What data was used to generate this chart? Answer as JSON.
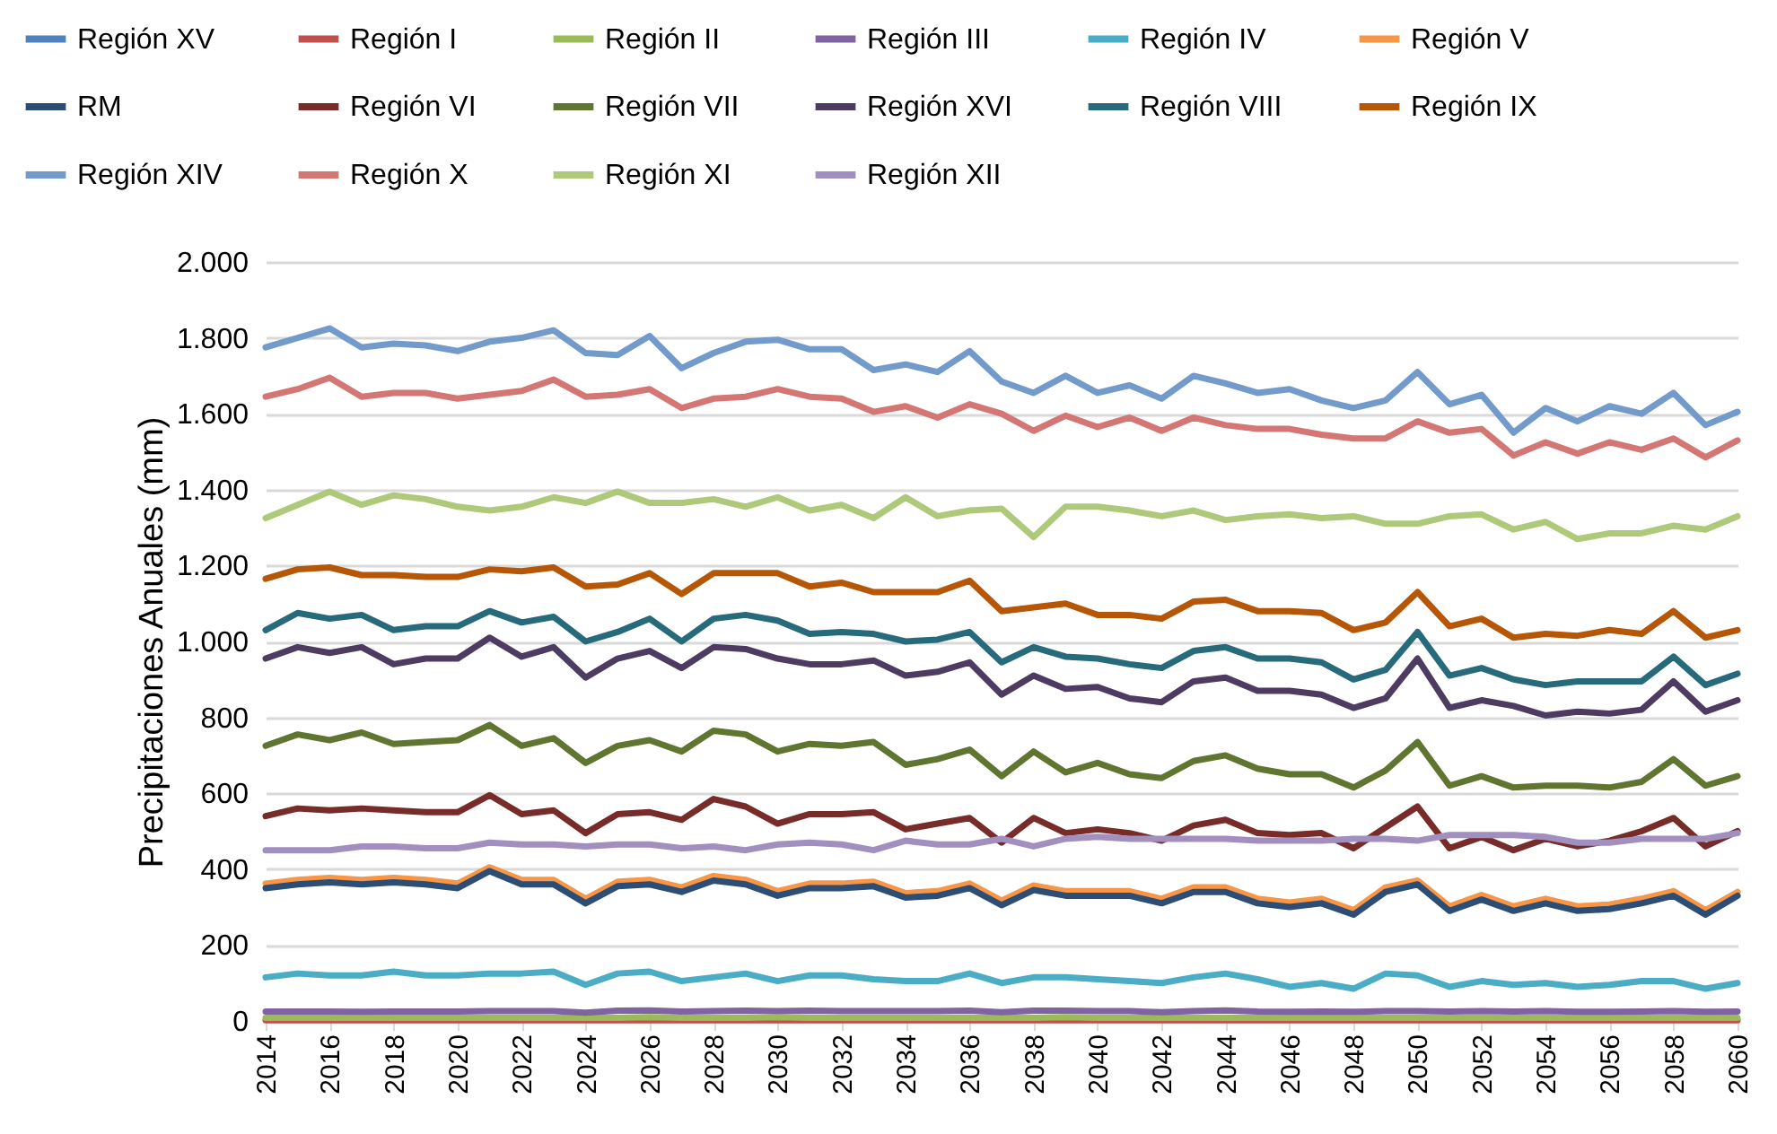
{
  "chart_data": {
    "type": "line",
    "ylabel": "Precipitaciones Anuales (mm)",
    "x": [
      2014,
      2015,
      2016,
      2017,
      2018,
      2019,
      2020,
      2021,
      2022,
      2023,
      2024,
      2025,
      2026,
      2027,
      2028,
      2029,
      2030,
      2031,
      2032,
      2033,
      2034,
      2035,
      2036,
      2037,
      2038,
      2039,
      2040,
      2041,
      2042,
      2043,
      2044,
      2045,
      2046,
      2047,
      2048,
      2049,
      2050,
      2051,
      2052,
      2053,
      2054,
      2055,
      2056,
      2057,
      2058,
      2059,
      2060
    ],
    "xlim": [
      2014,
      2060
    ],
    "xticks": [
      2014,
      2016,
      2018,
      2020,
      2022,
      2024,
      2026,
      2028,
      2030,
      2032,
      2034,
      2036,
      2038,
      2040,
      2042,
      2044,
      2046,
      2048,
      2050,
      2052,
      2054,
      2056,
      2058,
      2060
    ],
    "ylim": [
      0,
      2000
    ],
    "yticks": [
      0,
      200,
      400,
      600,
      800,
      {
        "value": 1000,
        "label": "1.000"
      },
      {
        "value": 1200,
        "label": "1.200"
      },
      {
        "value": 1400,
        "label": "1.400"
      },
      {
        "value": 1600,
        "label": "1.600"
      },
      {
        "value": 1800,
        "label": "1.800"
      },
      {
        "value": 2000,
        "label": "2.000"
      }
    ],
    "grid": "y",
    "legend": "top",
    "series": [
      {
        "name": "Región XV",
        "color": "#4f81bd",
        "values": [
          null,
          null,
          null,
          null,
          null,
          null,
          null,
          null,
          null,
          null,
          null,
          null,
          null,
          null,
          null,
          null,
          null,
          null,
          null,
          null,
          null,
          null,
          null,
          null,
          null,
          null,
          null,
          null,
          null,
          null,
          null,
          null,
          null,
          null,
          null,
          null,
          null,
          null,
          null,
          null,
          null,
          null,
          null,
          null,
          null,
          null,
          null
        ]
      },
      {
        "name": "Región I",
        "color": "#c0504d",
        "values": [
          2,
          2,
          2,
          2,
          2,
          2,
          2,
          2,
          2,
          2,
          2,
          2,
          2,
          2,
          2,
          2,
          2,
          2,
          2,
          2,
          2,
          2,
          2,
          2,
          2,
          2,
          2,
          2,
          2,
          2,
          2,
          2,
          2,
          2,
          2,
          2,
          2,
          2,
          2,
          2,
          2,
          2,
          2,
          2,
          2,
          2,
          2
        ]
      },
      {
        "name": "Región II",
        "color": "#9bbb59",
        "values": [
          8,
          8,
          8,
          8,
          8,
          8,
          8,
          8,
          8,
          8,
          8,
          8,
          10,
          8,
          8,
          8,
          10,
          8,
          8,
          8,
          8,
          8,
          8,
          8,
          8,
          10,
          8,
          8,
          8,
          8,
          8,
          8,
          8,
          8,
          8,
          8,
          8,
          8,
          8,
          8,
          8,
          8,
          8,
          8,
          8,
          8,
          8
        ]
      },
      {
        "name": "Región III",
        "color": "#8064a2",
        "values": [
          25,
          25,
          25,
          24,
          25,
          25,
          25,
          26,
          26,
          26,
          22,
          27,
          28,
          25,
          26,
          27,
          26,
          27,
          26,
          26,
          26,
          26,
          27,
          23,
          27,
          27,
          26,
          26,
          23,
          26,
          28,
          25,
          24,
          25,
          24,
          26,
          26,
          25,
          26,
          25,
          26,
          24,
          24,
          25,
          26,
          24,
          25
        ]
      },
      {
        "name": "Región IV",
        "color": "#4bacc6",
        "values": [
          115,
          125,
          120,
          120,
          130,
          120,
          120,
          125,
          125,
          130,
          95,
          125,
          130,
          105,
          115,
          125,
          105,
          120,
          120,
          110,
          105,
          105,
          125,
          100,
          115,
          115,
          110,
          105,
          100,
          115,
          125,
          110,
          90,
          100,
          85,
          125,
          120,
          90,
          105,
          95,
          100,
          90,
          95,
          105,
          105,
          85,
          100
        ]
      },
      {
        "name": "Región V",
        "color": "#f79646",
        "values": [
          362,
          372,
          377,
          372,
          377,
          372,
          362,
          405,
          372,
          372,
          322,
          367,
          372,
          352,
          382,
          372,
          342,
          362,
          362,
          367,
          337,
          342,
          362,
          317,
          357,
          342,
          342,
          342,
          322,
          352,
          352,
          322,
          312,
          322,
          292,
          352,
          370,
          302,
          332,
          302,
          322,
          302,
          307,
          322,
          342,
          292,
          340
        ]
      },
      {
        "name": "RM",
        "color": "#2c4d75",
        "values": [
          350,
          360,
          365,
          360,
          365,
          360,
          350,
          395,
          360,
          360,
          310,
          355,
          360,
          340,
          370,
          360,
          330,
          350,
          350,
          355,
          325,
          330,
          350,
          305,
          345,
          330,
          330,
          330,
          310,
          340,
          340,
          310,
          300,
          310,
          280,
          340,
          360,
          290,
          320,
          290,
          310,
          290,
          295,
          310,
          330,
          280,
          330
        ]
      },
      {
        "name": "Región VI",
        "color": "#772c2a",
        "values": [
          540,
          560,
          555,
          560,
          555,
          550,
          550,
          595,
          545,
          555,
          495,
          545,
          550,
          530,
          585,
          565,
          520,
          545,
          545,
          550,
          505,
          520,
          535,
          470,
          535,
          495,
          505,
          495,
          475,
          515,
          530,
          495,
          490,
          495,
          455,
          510,
          565,
          455,
          485,
          450,
          480,
          460,
          475,
          500,
          535,
          460,
          500
        ]
      },
      {
        "name": "Región VII",
        "color": "#5f7530",
        "values": [
          725,
          755,
          740,
          760,
          730,
          735,
          740,
          780,
          725,
          745,
          680,
          725,
          740,
          710,
          765,
          755,
          710,
          730,
          725,
          735,
          675,
          690,
          715,
          645,
          710,
          655,
          680,
          650,
          640,
          685,
          700,
          665,
          650,
          650,
          615,
          660,
          735,
          620,
          645,
          615,
          620,
          620,
          615,
          630,
          690,
          620,
          645
        ]
      },
      {
        "name": "Región XVI",
        "color": "#4d3b62",
        "values": [
          955,
          985,
          970,
          985,
          940,
          955,
          955,
          1010,
          960,
          985,
          905,
          955,
          975,
          930,
          985,
          980,
          955,
          940,
          940,
          950,
          910,
          920,
          945,
          860,
          910,
          875,
          880,
          850,
          840,
          895,
          905,
          870,
          870,
          860,
          825,
          850,
          955,
          825,
          845,
          830,
          805,
          815,
          810,
          820,
          895,
          815,
          845
        ]
      },
      {
        "name": "Región VIII",
        "color": "#276a7c",
        "values": [
          1030,
          1075,
          1060,
          1070,
          1030,
          1040,
          1040,
          1080,
          1050,
          1065,
          1000,
          1025,
          1060,
          1000,
          1060,
          1070,
          1055,
          1020,
          1025,
          1020,
          1000,
          1005,
          1025,
          945,
          985,
          960,
          955,
          940,
          930,
          975,
          985,
          955,
          955,
          945,
          900,
          925,
          1025,
          910,
          930,
          900,
          885,
          895,
          895,
          895,
          960,
          885,
          915
        ]
      },
      {
        "name": "Región IX",
        "color": "#b65708",
        "values": [
          1165,
          1190,
          1195,
          1175,
          1175,
          1170,
          1170,
          1190,
          1185,
          1195,
          1145,
          1150,
          1180,
          1125,
          1180,
          1180,
          1180,
          1145,
          1155,
          1130,
          1130,
          1130,
          1160,
          1080,
          1090,
          1100,
          1070,
          1070,
          1060,
          1105,
          1110,
          1080,
          1080,
          1075,
          1030,
          1050,
          1130,
          1040,
          1060,
          1010,
          1020,
          1015,
          1030,
          1020,
          1080,
          1010,
          1030
        ]
      },
      {
        "name": "Región XIV",
        "color": "#729aca",
        "values": [
          1775,
          1800,
          1825,
          1775,
          1785,
          1780,
          1765,
          1790,
          1800,
          1820,
          1760,
          1755,
          1805,
          1720,
          1760,
          1790,
          1795,
          1770,
          1770,
          1715,
          1730,
          1710,
          1765,
          1685,
          1655,
          1700,
          1655,
          1675,
          1640,
          1700,
          1680,
          1655,
          1665,
          1635,
          1615,
          1635,
          1710,
          1625,
          1650,
          1550,
          1615,
          1580,
          1620,
          1600,
          1655,
          1570,
          1605
        ]
      },
      {
        "name": "Región X",
        "color": "#d47673",
        "values": [
          1645,
          1665,
          1695,
          1645,
          1655,
          1655,
          1640,
          1650,
          1660,
          1690,
          1645,
          1650,
          1665,
          1615,
          1640,
          1645,
          1665,
          1645,
          1640,
          1605,
          1620,
          1590,
          1625,
          1600,
          1555,
          1595,
          1565,
          1590,
          1555,
          1590,
          1570,
          1560,
          1560,
          1545,
          1535,
          1535,
          1580,
          1550,
          1560,
          1490,
          1525,
          1495,
          1525,
          1505,
          1535,
          1485,
          1530
        ]
      },
      {
        "name": "Región XI",
        "color": "#afc97a",
        "values": [
          1325,
          1360,
          1395,
          1360,
          1385,
          1375,
          1355,
          1345,
          1355,
          1380,
          1365,
          1395,
          1365,
          1365,
          1375,
          1355,
          1380,
          1345,
          1360,
          1325,
          1380,
          1330,
          1345,
          1350,
          1275,
          1355,
          1355,
          1345,
          1330,
          1345,
          1320,
          1330,
          1335,
          1325,
          1330,
          1310,
          1310,
          1330,
          1335,
          1295,
          1315,
          1270,
          1285,
          1285,
          1305,
          1295,
          1330
        ]
      },
      {
        "name": "Región XII",
        "color": "#a18fbf",
        "values": [
          450,
          450,
          450,
          460,
          460,
          455,
          455,
          470,
          465,
          465,
          460,
          465,
          465,
          455,
          460,
          450,
          465,
          470,
          465,
          450,
          475,
          465,
          465,
          480,
          460,
          480,
          485,
          480,
          480,
          480,
          480,
          475,
          475,
          475,
          480,
          480,
          475,
          490,
          490,
          490,
          485,
          470,
          470,
          480,
          480,
          480,
          495
        ]
      }
    ]
  }
}
